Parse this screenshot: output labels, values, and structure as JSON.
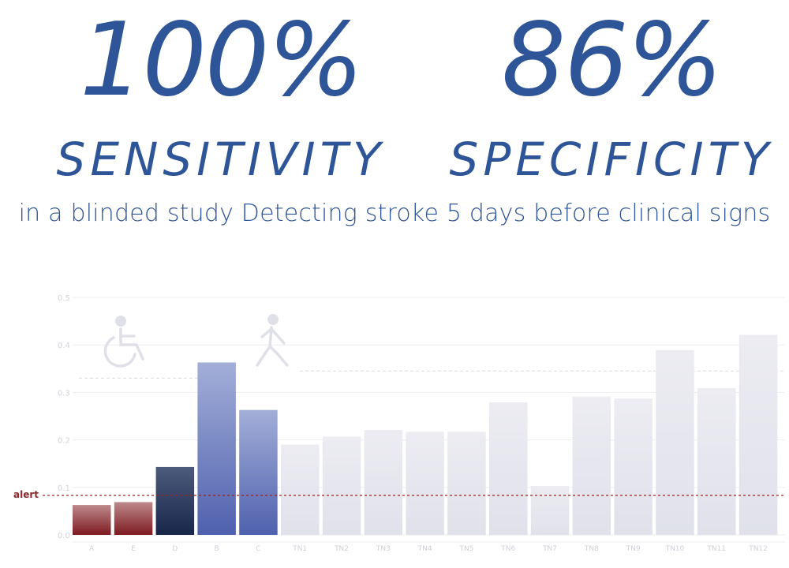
{
  "stats": [
    {
      "value": "100%",
      "label": "SENSITIVITY"
    },
    {
      "value": "86%",
      "label": "SPECIFICITY"
    }
  ],
  "subtitle": "in a blinded study Detecting stroke 5 days before clinical signs",
  "colors": {
    "accent": "#2e5597",
    "alert": "#8b2a2a",
    "red_bar": "#8a2a2e",
    "navy_bar": "#1e2e50",
    "blue_bar": "#5769b3",
    "gray_bar": "#e2e3ec"
  },
  "chart_data": {
    "type": "bar",
    "categories": [
      "A",
      "E",
      "D",
      "B",
      "C",
      "TN1",
      "TN2",
      "TN3",
      "TN4",
      "TN5",
      "TN6",
      "TN7",
      "TN8",
      "TN9",
      "TN10",
      "TN11",
      "TN12"
    ],
    "values": [
      0.063,
      0.069,
      0.143,
      0.363,
      0.263,
      0.19,
      0.207,
      0.221,
      0.217,
      0.217,
      0.279,
      0.103,
      0.291,
      0.287,
      0.389,
      0.309,
      0.421
    ],
    "groups": [
      "red",
      "red",
      "navy",
      "blue",
      "blue",
      "gray",
      "gray",
      "gray",
      "gray",
      "gray",
      "gray",
      "gray",
      "gray",
      "gray",
      "gray",
      "gray",
      "gray"
    ],
    "ylim": [
      0,
      0.5
    ],
    "yticks": [
      {
        "value": 0,
        "label": "0.0"
      },
      {
        "value": 0.1,
        "label": "0.1"
      },
      {
        "value": 0.2,
        "label": "0.2"
      },
      {
        "value": 0.3,
        "label": "0.3"
      },
      {
        "value": 0.4,
        "label": "0.4"
      },
      {
        "value": 0.5,
        "label": "0.5"
      }
    ],
    "alert_threshold": 0.083,
    "alert_label": "alert",
    "reference_lines": [
      0.33,
      0.345
    ],
    "icons": [
      "wheelchair-icon",
      "walking-person-icon"
    ],
    "grid": true
  }
}
